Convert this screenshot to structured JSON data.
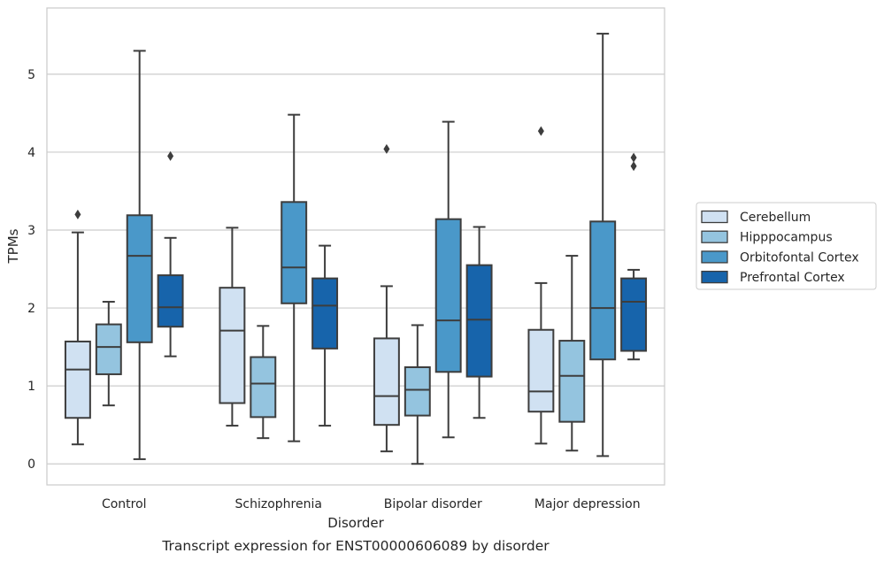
{
  "caption": "Transcript expression for ENST00000606089 by disorder",
  "chart_data": {
    "type": "boxplot",
    "xlabel": "Disorder",
    "ylabel": "TPMs",
    "ylim": [
      -0.27,
      5.85
    ],
    "yticks": [
      0,
      1,
      2,
      3,
      4,
      5
    ],
    "grid": true,
    "legend_position": "right",
    "categories": [
      "Control",
      "Schizophrenia",
      "Bipolar disorder",
      "Major depression"
    ],
    "series": [
      {
        "name": "Cerebellum",
        "color": "#d0e1f2",
        "boxes": [
          {
            "whisker_low": 0.25,
            "q1": 0.59,
            "median": 1.21,
            "q3": 1.57,
            "whisker_high": 2.97,
            "outliers": [
              3.2
            ]
          },
          {
            "whisker_low": 0.49,
            "q1": 0.78,
            "median": 1.71,
            "q3": 2.26,
            "whisker_high": 3.03,
            "outliers": []
          },
          {
            "whisker_low": 0.16,
            "q1": 0.5,
            "median": 0.87,
            "q3": 1.61,
            "whisker_high": 2.28,
            "outliers": [
              4.04
            ]
          },
          {
            "whisker_low": 0.26,
            "q1": 0.67,
            "median": 0.93,
            "q3": 1.72,
            "whisker_high": 2.32,
            "outliers": [
              4.27
            ]
          }
        ]
      },
      {
        "name": "Hipppocampus",
        "color": "#94c4df",
        "boxes": [
          {
            "whisker_low": 0.75,
            "q1": 1.15,
            "median": 1.5,
            "q3": 1.79,
            "whisker_high": 2.08,
            "outliers": []
          },
          {
            "whisker_low": 0.33,
            "q1": 0.6,
            "median": 1.03,
            "q3": 1.37,
            "whisker_high": 1.77,
            "outliers": []
          },
          {
            "whisker_low": 0.0,
            "q1": 0.62,
            "median": 0.95,
            "q3": 1.24,
            "whisker_high": 1.78,
            "outliers": []
          },
          {
            "whisker_low": 0.17,
            "q1": 0.54,
            "median": 1.13,
            "q3": 1.58,
            "whisker_high": 2.67,
            "outliers": []
          }
        ]
      },
      {
        "name": "Orbitofontal Cortex",
        "color": "#4a98c9",
        "boxes": [
          {
            "whisker_low": 0.06,
            "q1": 1.56,
            "median": 2.67,
            "q3": 3.19,
            "whisker_high": 5.3,
            "outliers": []
          },
          {
            "whisker_low": 0.29,
            "q1": 2.06,
            "median": 2.52,
            "q3": 3.36,
            "whisker_high": 4.48,
            "outliers": []
          },
          {
            "whisker_low": 0.34,
            "q1": 1.18,
            "median": 1.84,
            "q3": 3.14,
            "whisker_high": 4.39,
            "outliers": []
          },
          {
            "whisker_low": 0.1,
            "q1": 1.34,
            "median": 2.0,
            "q3": 3.11,
            "whisker_high": 5.52,
            "outliers": []
          }
        ]
      },
      {
        "name": "Prefrontal Cortex",
        "color": "#1764ab",
        "boxes": [
          {
            "whisker_low": 1.38,
            "q1": 1.76,
            "median": 2.01,
            "q3": 2.42,
            "whisker_high": 2.9,
            "outliers": [
              3.95
            ]
          },
          {
            "whisker_low": 0.49,
            "q1": 1.48,
            "median": 2.03,
            "q3": 2.38,
            "whisker_high": 2.8,
            "outliers": []
          },
          {
            "whisker_low": 0.59,
            "q1": 1.12,
            "median": 1.85,
            "q3": 2.55,
            "whisker_high": 3.04,
            "outliers": []
          },
          {
            "whisker_low": 1.34,
            "q1": 1.45,
            "median": 2.08,
            "q3": 2.38,
            "whisker_high": 2.49,
            "outliers": [
              3.82,
              3.93
            ]
          }
        ]
      }
    ]
  }
}
